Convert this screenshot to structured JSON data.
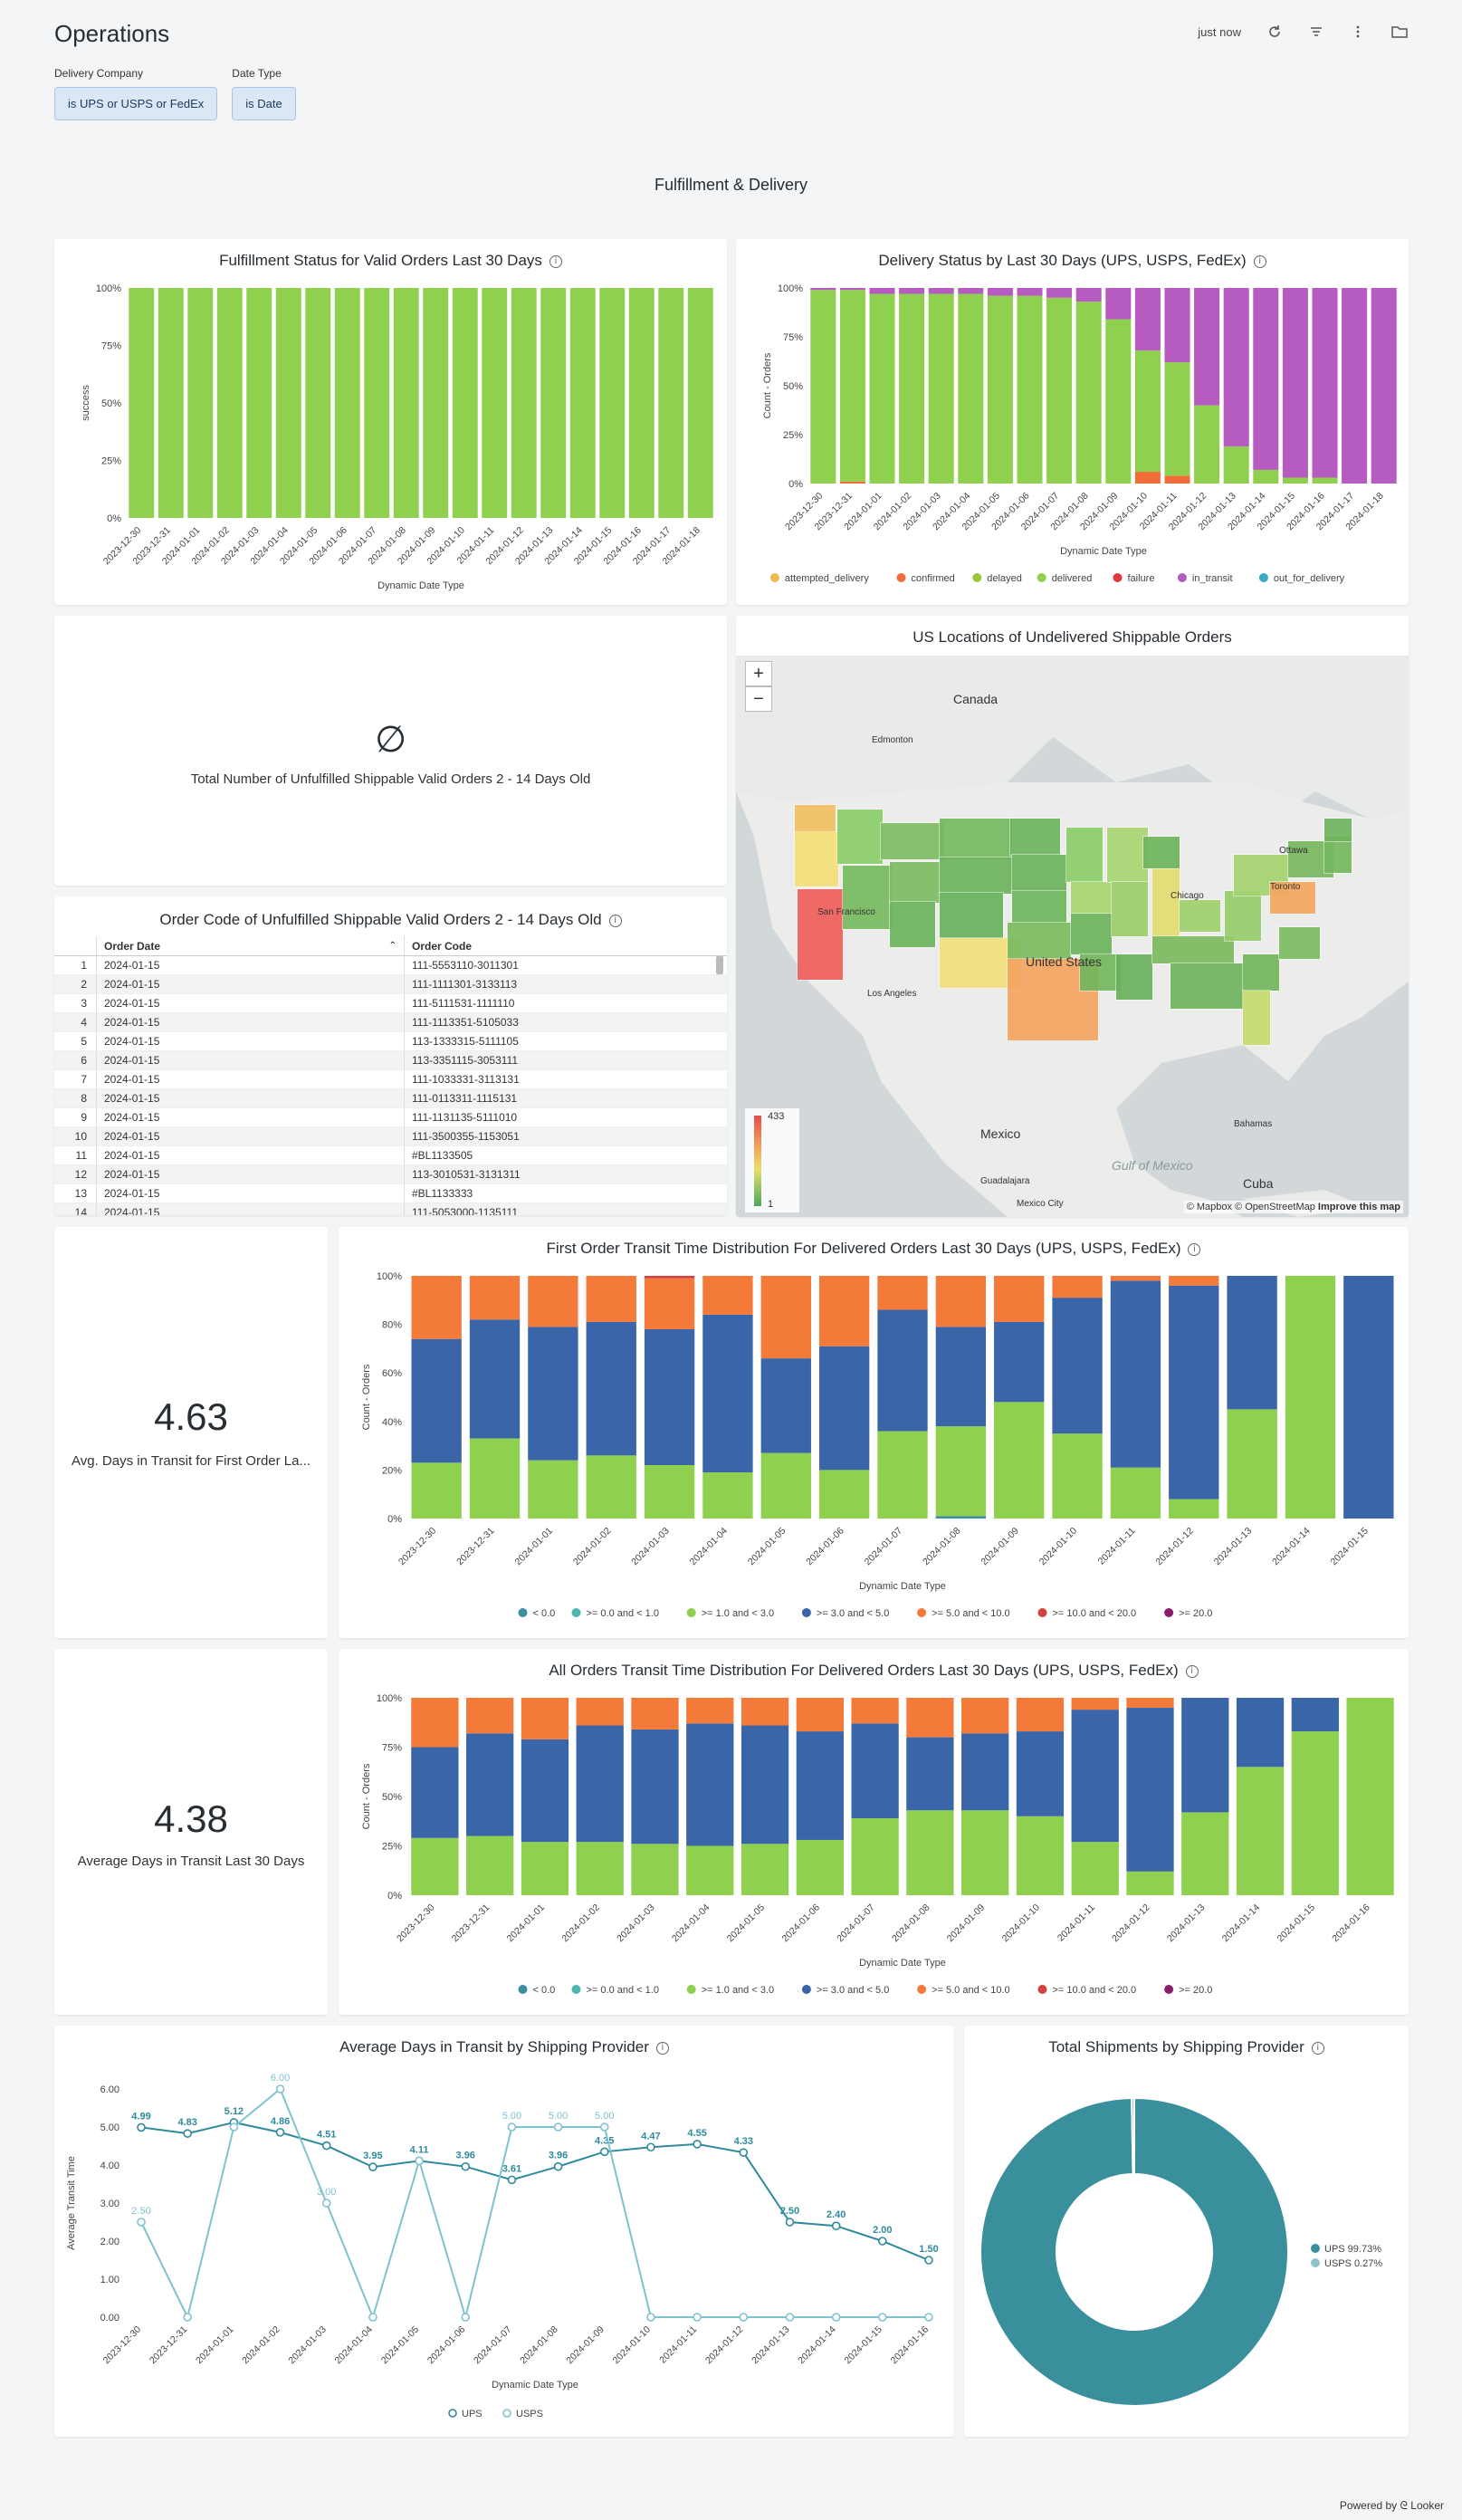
{
  "header": {
    "title": "Operations",
    "last_refresh": "just now",
    "icons": [
      "refresh-icon",
      "filter-icon",
      "more-icon",
      "folder-icon"
    ]
  },
  "filters": [
    {
      "label": "Delivery Company",
      "value": "is UPS or USPS or FedEx"
    },
    {
      "label": "Date Type",
      "value": "is Date"
    }
  ],
  "section_title": "Fulfillment & Delivery",
  "tiles": {
    "fulfillment": {
      "title": "Fulfillment Status for Valid Orders Last 30 Days"
    },
    "delivery": {
      "title": "Delivery Status by Last 30 Days (UPS, USPS, FedEx)"
    },
    "unfulfilled_count": {
      "label": "Total Number of Unfulfilled Shippable Valid Orders 2 - 14 Days Old",
      "value": "∅"
    },
    "map": {
      "title": "US Locations of Undelivered Shippable Orders",
      "legend_max": "433",
      "legend_min": "1",
      "attribution": "© Mapbox © OpenStreetMap",
      "attribution_link": "Improve this map",
      "labels": [
        "Canada",
        "United States",
        "Mexico",
        "Gulf of Mexico",
        "Cuba",
        "Edmonton",
        "Ottawa",
        "Toronto",
        "Chicago",
        "Guadalajara",
        "Mexico City",
        "Bahamas",
        "San Francisco",
        "Los Angeles"
      ]
    },
    "order_table": {
      "title": "Order Code of Unfulfilled Shippable Valid Orders 2 - 14 Days Old",
      "columns": [
        "Order Date",
        "Order Code"
      ],
      "rows": [
        [
          "1",
          "2024-01-15",
          "111-5553110-3011301"
        ],
        [
          "2",
          "2024-01-15",
          "111-1111301-3133113"
        ],
        [
          "3",
          "2024-01-15",
          "111-5111531-1111110"
        ],
        [
          "4",
          "2024-01-15",
          "111-1113351-5105033"
        ],
        [
          "5",
          "2024-01-15",
          "113-1333315-5111105"
        ],
        [
          "6",
          "2024-01-15",
          "113-3351115-3053111"
        ],
        [
          "7",
          "2024-01-15",
          "111-1033331-3113131"
        ],
        [
          "8",
          "2024-01-15",
          "111-0113311-1115131"
        ],
        [
          "9",
          "2024-01-15",
          "111-1131135-5111010"
        ],
        [
          "10",
          "2024-01-15",
          "111-3500355-1153051"
        ],
        [
          "11",
          "2024-01-15",
          "#BL1133505"
        ],
        [
          "12",
          "2024-01-15",
          "113-3010531-3131311"
        ],
        [
          "13",
          "2024-01-15",
          "#BL1133333"
        ],
        [
          "14",
          "2024-01-15",
          "111-5053000-1135111"
        ]
      ]
    },
    "first_avg": {
      "value": "4.63",
      "label": "Avg. Days in Transit for First Order La..."
    },
    "first_dist": {
      "title": "First Order Transit Time Distribution For Delivered Orders Last 30 Days (UPS, USPS, FedEx)"
    },
    "all_avg": {
      "value": "4.38",
      "label": "Average Days in Transit Last 30 Days"
    },
    "all_dist": {
      "title": "All Orders Transit Time Distribution For Delivered Orders Last 30 Days (UPS, USPS, FedEx)"
    },
    "avg_provider": {
      "title": "Average Days in Transit by Shipping Provider"
    },
    "total_shipments": {
      "title": "Total Shipments by Shipping Provider"
    }
  },
  "footer": {
    "text": "Powered by ᘓ Looker"
  },
  "chart_data": [
    {
      "id": "fulfillment",
      "type": "bar",
      "stacked": "percent",
      "categories": [
        "2023-12-30",
        "2023-12-31",
        "2024-01-01",
        "2024-01-02",
        "2024-01-03",
        "2024-01-04",
        "2024-01-05",
        "2024-01-06",
        "2024-01-07",
        "2024-01-08",
        "2024-01-09",
        "2024-01-10",
        "2024-01-11",
        "2024-01-12",
        "2024-01-13",
        "2024-01-14",
        "2024-01-15",
        "2024-01-16",
        "2024-01-17",
        "2024-01-18"
      ],
      "series": [
        {
          "name": "success",
          "color": "#8fd14f",
          "values": [
            100,
            100,
            100,
            100,
            100,
            100,
            100,
            100,
            100,
            100,
            100,
            100,
            100,
            100,
            100,
            100,
            100,
            100,
            100,
            100
          ]
        }
      ],
      "xlabel": "Dynamic Date Type",
      "ylabel": "success",
      "yticks": [
        "0%",
        "25%",
        "50%",
        "75%",
        "100%"
      ]
    },
    {
      "id": "delivery",
      "type": "bar",
      "stacked": "percent",
      "categories": [
        "2023-12-30",
        "2023-12-31",
        "2024-01-01",
        "2024-01-02",
        "2024-01-03",
        "2024-01-04",
        "2024-01-05",
        "2024-01-06",
        "2024-01-07",
        "2024-01-08",
        "2024-01-09",
        "2024-01-10",
        "2024-01-11",
        "2024-01-12",
        "2024-01-13",
        "2024-01-14",
        "2024-01-15",
        "2024-01-16",
        "2024-01-17",
        "2024-01-18"
      ],
      "series": [
        {
          "name": "attempted_delivery",
          "color": "#f2b950",
          "values": [
            0,
            0,
            0,
            0,
            0,
            0,
            0,
            0,
            0,
            0,
            0,
            0,
            0,
            0,
            0,
            0,
            0,
            0,
            0,
            0
          ]
        },
        {
          "name": "confirmed",
          "color": "#f26c3a",
          "values": [
            0,
            1,
            0,
            0,
            0,
            0,
            0,
            0,
            0,
            0,
            0,
            6,
            4,
            0,
            0,
            0,
            0,
            0,
            0,
            0
          ]
        },
        {
          "name": "delayed",
          "color": "#9bc53d",
          "values": [
            0,
            0,
            0,
            0,
            0,
            0,
            0,
            0,
            0,
            0,
            0,
            0,
            0,
            0,
            0,
            0,
            0,
            0,
            0,
            0
          ]
        },
        {
          "name": "delivered",
          "color": "#8fd14f",
          "values": [
            99,
            98,
            97,
            97,
            97,
            97,
            96,
            96,
            95,
            93,
            84,
            62,
            58,
            40,
            19,
            7,
            3,
            3,
            0,
            0
          ]
        },
        {
          "name": "failure",
          "color": "#e2373d",
          "values": [
            0,
            0,
            0,
            0,
            0,
            0,
            0,
            0,
            0,
            0,
            0,
            0,
            0,
            0,
            0,
            0,
            0,
            0,
            0,
            0
          ]
        },
        {
          "name": "in_transit",
          "color": "#b65bbf",
          "values": [
            1,
            1,
            3,
            3,
            3,
            3,
            4,
            4,
            5,
            7,
            16,
            32,
            38,
            60,
            81,
            93,
            97,
            97,
            100,
            100
          ]
        },
        {
          "name": "out_for_delivery",
          "color": "#3eaac9",
          "values": [
            0,
            0,
            0,
            0,
            0,
            0,
            0,
            0,
            0,
            0,
            0,
            0,
            0,
            0,
            0,
            0,
            0,
            0,
            0,
            0
          ]
        }
      ],
      "xlabel": "Dynamic Date Type",
      "ylabel": "Count - Orders",
      "yticks": [
        "0%",
        "25%",
        "50%",
        "75%",
        "100%"
      ]
    },
    {
      "id": "first_dist",
      "type": "bar",
      "stacked": "percent",
      "categories": [
        "2023-12-30",
        "2023-12-31",
        "2024-01-01",
        "2024-01-02",
        "2024-01-03",
        "2024-01-04",
        "2024-01-05",
        "2024-01-06",
        "2024-01-07",
        "2024-01-08",
        "2024-01-09",
        "2024-01-10",
        "2024-01-11",
        "2024-01-12",
        "2024-01-13",
        "2024-01-14",
        "2024-01-15"
      ],
      "series": [
        {
          "name": "< 0.0",
          "color": "#3a8fa0",
          "values": [
            0,
            0,
            0,
            0,
            0,
            0,
            0,
            0,
            0,
            1,
            0,
            0,
            0,
            0,
            0,
            0,
            0
          ]
        },
        {
          "name": ">= 0.0 and < 1.0",
          "color": "#4db6b0",
          "values": [
            0,
            0,
            0,
            0,
            0,
            0,
            0,
            0,
            0,
            0,
            0,
            0,
            0,
            0,
            0,
            0,
            0
          ]
        },
        {
          "name": ">= 1.0 and < 3.0",
          "color": "#8fd14f",
          "values": [
            23,
            33,
            24,
            26,
            22,
            19,
            27,
            20,
            36,
            37,
            48,
            35,
            21,
            8,
            45,
            100,
            0
          ]
        },
        {
          "name": ">= 3.0 and < 5.0",
          "color": "#3a65a8",
          "values": [
            51,
            49,
            55,
            55,
            56,
            65,
            39,
            51,
            50,
            41,
            33,
            56,
            77,
            88,
            55,
            0,
            100
          ]
        },
        {
          "name": ">= 5.0 and < 10.0",
          "color": "#f47a3a",
          "values": [
            26,
            18,
            21,
            19,
            21,
            16,
            34,
            29,
            14,
            21,
            19,
            9,
            2,
            4,
            0,
            0,
            0
          ]
        },
        {
          "name": ">= 10.0 and < 20.0",
          "color": "#d3423f",
          "values": [
            0,
            0,
            0,
            0,
            1,
            0,
            0,
            0,
            0,
            0,
            0,
            0,
            0,
            0,
            0,
            0,
            0
          ]
        },
        {
          "name": ">= 20.0",
          "color": "#8b1c6e",
          "values": [
            0,
            0,
            0,
            0,
            0,
            0,
            0,
            0,
            0,
            0,
            0,
            0,
            0,
            0,
            0,
            0,
            0
          ]
        }
      ],
      "xlabel": "Dynamic Date Type",
      "ylabel": "Count - Orders",
      "yticks": [
        "0%",
        "20%",
        "40%",
        "60%",
        "80%",
        "100%"
      ]
    },
    {
      "id": "all_dist",
      "type": "bar",
      "stacked": "percent",
      "categories": [
        "2023-12-30",
        "2023-12-31",
        "2024-01-01",
        "2024-01-02",
        "2024-01-03",
        "2024-01-04",
        "2024-01-05",
        "2024-01-06",
        "2024-01-07",
        "2024-01-08",
        "2024-01-09",
        "2024-01-10",
        "2024-01-11",
        "2024-01-12",
        "2024-01-13",
        "2024-01-14",
        "2024-01-15",
        "2024-01-16"
      ],
      "series": [
        {
          "name": "< 0.0",
          "color": "#3a8fa0",
          "values": [
            0,
            0,
            0,
            0,
            0,
            0,
            0,
            0,
            0,
            0,
            0,
            0,
            0,
            0,
            0,
            0,
            0,
            0
          ]
        },
        {
          "name": ">= 0.0 and < 1.0",
          "color": "#4db6b0",
          "values": [
            0,
            0,
            0,
            0,
            0,
            0,
            0,
            0,
            0,
            0,
            0,
            0,
            0,
            0,
            0,
            0,
            0,
            0
          ]
        },
        {
          "name": ">= 1.0 and < 3.0",
          "color": "#8fd14f",
          "values": [
            29,
            30,
            27,
            27,
            26,
            25,
            26,
            28,
            39,
            43,
            43,
            40,
            27,
            12,
            42,
            65,
            83,
            100
          ]
        },
        {
          "name": ">= 3.0 and < 5.0",
          "color": "#3a65a8",
          "values": [
            46,
            52,
            52,
            59,
            58,
            62,
            60,
            55,
            48,
            37,
            39,
            43,
            67,
            83,
            58,
            35,
            17,
            0
          ]
        },
        {
          "name": ">= 5.0 and < 10.0",
          "color": "#f47a3a",
          "values": [
            25,
            18,
            21,
            14,
            16,
            13,
            14,
            17,
            13,
            20,
            18,
            17,
            6,
            5,
            0,
            0,
            0,
            0
          ]
        },
        {
          "name": ">= 10.0 and < 20.0",
          "color": "#d3423f",
          "values": [
            0,
            0,
            0,
            0,
            0,
            0,
            0,
            0,
            0,
            0,
            0,
            0,
            0,
            0,
            0,
            0,
            0,
            0
          ]
        },
        {
          "name": ">= 20.0",
          "color": "#8b1c6e",
          "values": [
            0,
            0,
            0,
            0,
            0,
            0,
            0,
            0,
            0,
            0,
            0,
            0,
            0,
            0,
            0,
            0,
            0,
            0
          ]
        }
      ],
      "xlabel": "Dynamic Date Type",
      "ylabel": "Count - Orders",
      "yticks": [
        "0%",
        "25%",
        "50%",
        "75%",
        "100%"
      ]
    },
    {
      "id": "avg_provider",
      "type": "line",
      "categories": [
        "2023-12-30",
        "2023-12-31",
        "2024-01-01",
        "2024-01-02",
        "2024-01-03",
        "2024-01-04",
        "2024-01-05",
        "2024-01-06",
        "2024-01-07",
        "2024-01-08",
        "2024-01-09",
        "2024-01-10",
        "2024-01-11",
        "2024-01-12",
        "2024-01-13",
        "2024-01-14",
        "2024-01-15",
        "2024-01-16"
      ],
      "series": [
        {
          "name": "UPS",
          "color": "#2e8a9c",
          "values": [
            4.99,
            4.83,
            5.12,
            4.86,
            4.51,
            3.95,
            4.11,
            3.96,
            3.61,
            3.96,
            4.35,
            4.47,
            4.55,
            4.33,
            2.5,
            2.4,
            2.0,
            1.5
          ],
          "labels": [
            "4.99",
            "4.83",
            "5.12",
            "4.86",
            "4.51",
            "3.95",
            "4.11",
            "3.96",
            "3.61",
            "3.96",
            "4.35",
            "4.47",
            "4.55",
            "4.33",
            "2.50",
            "2.40",
            "2.00",
            "1.50"
          ]
        },
        {
          "name": "USPS",
          "color": "#7fc2d0",
          "values": [
            2.5,
            0,
            5.0,
            6.0,
            3.0,
            0,
            4.11,
            0,
            5.0,
            5.0,
            5.0,
            0,
            0,
            0,
            0,
            0,
            0,
            0
          ],
          "labels": [
            "2.50",
            "",
            "",
            "6.00",
            "3.00",
            "",
            "",
            "",
            "5.00",
            "5.00",
            "5.00",
            "",
            "",
            "",
            "",
            "",
            "",
            ""
          ]
        }
      ],
      "xlabel": "Dynamic Date Type",
      "ylabel": "Average Transit Time",
      "yticks": [
        "0.00",
        "1.00",
        "2.00",
        "3.00",
        "4.00",
        "5.00",
        "6.00"
      ],
      "ylim": [
        0,
        6
      ]
    },
    {
      "id": "total_shipments",
      "type": "pie",
      "donut": true,
      "categories": [
        "UPS",
        "USPS"
      ],
      "values": [
        99.73,
        0.27
      ],
      "colors": [
        "#3a8f9c",
        "#8ec3cc"
      ],
      "legend": [
        "UPS 99.73%",
        "USPS 0.27%"
      ]
    }
  ]
}
